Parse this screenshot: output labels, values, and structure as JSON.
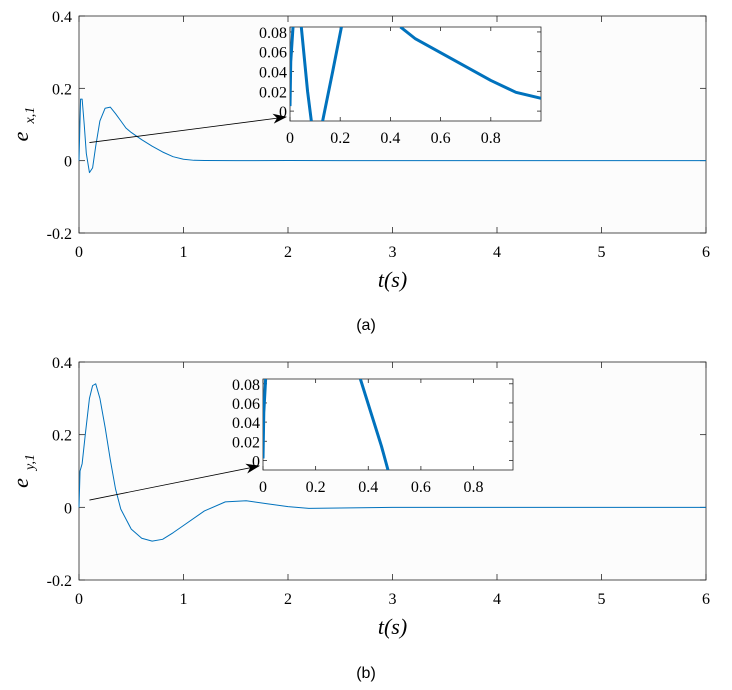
{
  "chart_data": [
    {
      "type": "line",
      "caption": "(a)",
      "ylabel_base": "e",
      "ylabel_sub": "x,1",
      "xlabel": "t(s)",
      "xlim": [
        0,
        6
      ],
      "ylim": [
        -0.2,
        0.4
      ],
      "xticks": [
        "0",
        "1",
        "2",
        "3",
        "4",
        "5",
        "6"
      ],
      "yticks": [
        "-0.2",
        "0",
        "0.2",
        "0.4"
      ],
      "line_color": "#0072BD",
      "series": [
        {
          "x": [
            0,
            0.015,
            0.03,
            0.05,
            0.07,
            0.1,
            0.13,
            0.16,
            0.2,
            0.25,
            0.3,
            0.35,
            0.4,
            0.45,
            0.5,
            0.6,
            0.7,
            0.8,
            0.9,
            1.0,
            1.1,
            1.2,
            1.5,
            2.0,
            2.5,
            3.0,
            4.0,
            5.0,
            6.0
          ],
          "y": [
            0,
            0.17,
            0.17,
            0.1,
            0.02,
            -0.033,
            -0.02,
            0.04,
            0.11,
            0.145,
            0.148,
            0.13,
            0.11,
            0.09,
            0.078,
            0.058,
            0.04,
            0.024,
            0.011,
            0.004,
            0.001,
            0.0005,
            0.0,
            0.0005,
            0.0,
            0.0,
            0.0,
            0.0,
            0.0
          ]
        }
      ],
      "inset": {
        "xlim": [
          0,
          1
        ],
        "ylim": [
          -0.01,
          0.085
        ],
        "xticks": [
          "0",
          "0.2",
          "0.4",
          "0.6",
          "0.8"
        ],
        "yticks": [
          "0",
          "0.02",
          "0.04",
          "0.06",
          "0.08"
        ],
        "series": [
          {
            "segments": [
              {
                "x": [
                  0.0,
                  0.003,
                  0.012
                ],
                "y": [
                  0.005,
                  0.05,
                  0.085
                ]
              },
              {
                "x": [
                  0.045,
                  0.07,
                  0.085
                ],
                "y": [
                  0.085,
                  0.02,
                  -0.01
                ]
              },
              {
                "x": [
                  0.13,
                  0.17,
                  0.205
                ],
                "y": [
                  -0.01,
                  0.04,
                  0.085
                ]
              },
              {
                "x": [
                  0.44,
                  0.5,
                  0.6,
                  0.7,
                  0.8,
                  0.9,
                  1.0
                ],
                "y": [
                  0.085,
                  0.073,
                  0.059,
                  0.045,
                  0.031,
                  0.019,
                  0.013
                ]
              }
            ]
          }
        ]
      }
    },
    {
      "type": "line",
      "caption": "(b)",
      "ylabel_base": "e",
      "ylabel_sub": "y,1",
      "xlabel": "t(s)",
      "xlim": [
        0,
        6
      ],
      "ylim": [
        -0.2,
        0.4
      ],
      "xticks": [
        "0",
        "1",
        "2",
        "3",
        "4",
        "5",
        "6"
      ],
      "yticks": [
        "-0.2",
        "0",
        "0.2",
        "0.4"
      ],
      "line_color": "#0072BD",
      "series": [
        {
          "x": [
            0,
            0.01,
            0.03,
            0.06,
            0.1,
            0.13,
            0.16,
            0.2,
            0.25,
            0.3,
            0.35,
            0.4,
            0.5,
            0.6,
            0.7,
            0.8,
            0.9,
            1.0,
            1.2,
            1.4,
            1.6,
            1.8,
            2.0,
            2.2,
            2.5,
            3.0,
            4.0,
            5.0,
            6.0
          ],
          "y": [
            0,
            0.1,
            0.12,
            0.2,
            0.3,
            0.335,
            0.34,
            0.3,
            0.22,
            0.13,
            0.05,
            -0.005,
            -0.06,
            -0.085,
            -0.093,
            -0.088,
            -0.07,
            -0.05,
            -0.01,
            0.015,
            0.018,
            0.01,
            0.002,
            -0.003,
            -0.002,
            0.0,
            0.0,
            0.0,
            0.0
          ]
        }
      ],
      "inset": {
        "xlim": [
          0,
          0.95
        ],
        "ylim": [
          -0.01,
          0.085
        ],
        "xticks": [
          "0",
          "0.2",
          "0.4",
          "0.6",
          "0.8"
        ],
        "yticks": [
          "0",
          "0.02",
          "0.04",
          "0.06",
          "0.08"
        ],
        "series": [
          {
            "segments": [
              {
                "x": [
                  0.0,
                  0.003,
                  0.01
                ],
                "y": [
                  0.002,
                  0.05,
                  0.085
                ]
              },
              {
                "x": [
                  0.37,
                  0.41,
                  0.45,
                  0.475
                ],
                "y": [
                  0.085,
                  0.05,
                  0.015,
                  -0.01
                ]
              }
            ]
          }
        ]
      }
    }
  ]
}
